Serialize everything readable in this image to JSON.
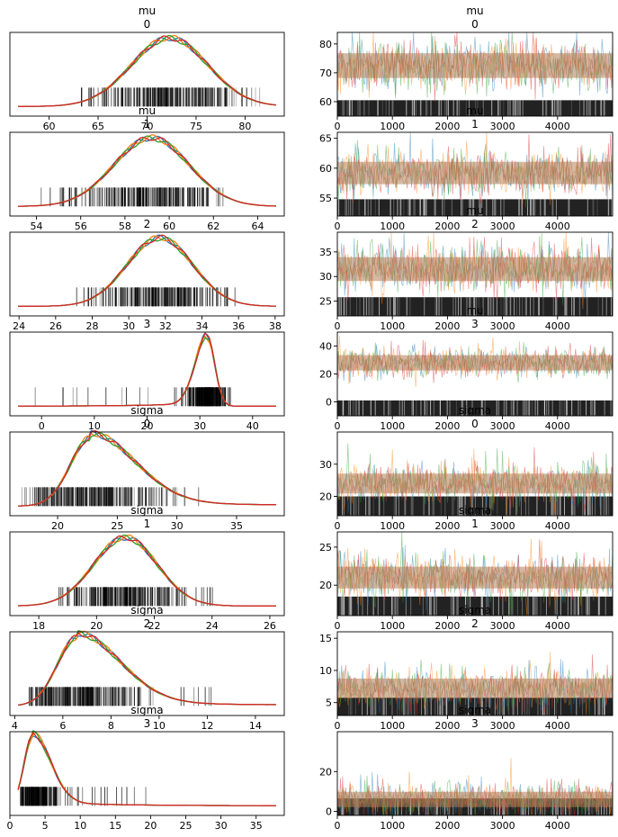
{
  "figure": {
    "left_column": "density",
    "right_column": "trace",
    "series_colors": [
      "#1f77b4",
      "#ff7f0e",
      "#2ca02c",
      "#d62728"
    ],
    "trace_blend_color": "#b5805a",
    "rug_color": "#000000"
  },
  "chart_data": [
    {
      "type": "area",
      "kind": "density",
      "title": "mu",
      "subtitle": "0",
      "xlim": [
        56,
        84
      ],
      "xticks": [
        60,
        65,
        70,
        75,
        80
      ],
      "mode": 72.3,
      "sd": 3.9,
      "rug_range": [
        59.5,
        81.5
      ],
      "shape": "normal"
    },
    {
      "type": "line",
      "kind": "trace",
      "title": "mu",
      "subtitle": "0",
      "xlim": [
        0,
        5000
      ],
      "ylim": [
        55,
        84
      ],
      "xticks": [
        0,
        1000,
        2000,
        3000,
        4000
      ],
      "yticks": [
        60,
        70,
        80
      ],
      "center": 72.5,
      "spread": 3.9,
      "rug_top": 60.5
    },
    {
      "type": "area",
      "kind": "density",
      "title": "mu",
      "subtitle": "1",
      "xlim": [
        52.8,
        65.2
      ],
      "xticks": [
        54,
        56,
        58,
        60,
        62,
        64
      ],
      "mode": 59.2,
      "sd": 1.7,
      "rug_range": [
        54,
        62.5
      ],
      "shape": "normal"
    },
    {
      "type": "line",
      "kind": "trace",
      "title": "mu",
      "subtitle": "1",
      "xlim": [
        0,
        5000
      ],
      "ylim": [
        52,
        66
      ],
      "xticks": [
        0,
        1000,
        2000,
        3000,
        4000
      ],
      "yticks": [
        55,
        60,
        65
      ],
      "center": 59.2,
      "spread": 1.7,
      "rug_top": 54.8
    },
    {
      "type": "area",
      "kind": "density",
      "title": "",
      "subtitle": "2",
      "xlim": [
        23.5,
        38.5
      ],
      "xticks": [
        24,
        26,
        28,
        30,
        32,
        34,
        36,
        38
      ],
      "mode": 31.7,
      "sd": 1.8,
      "rug_range": [
        26.8,
        36
      ],
      "shape": "normal"
    },
    {
      "type": "line",
      "kind": "trace",
      "title": "mu",
      "subtitle": "2",
      "xlim": [
        0,
        5000
      ],
      "ylim": [
        22,
        39
      ],
      "xticks": [
        0,
        1000,
        2000,
        3000,
        4000
      ],
      "yticks": [
        25,
        30,
        35
      ],
      "center": 31.5,
      "spread": 2.2,
      "rug_top": 25.8
    },
    {
      "type": "area",
      "kind": "density",
      "title": "",
      "subtitle": "3",
      "xlim": [
        -6,
        46
      ],
      "xticks": [
        0,
        10,
        20,
        30,
        40
      ],
      "mode": 31.4,
      "sd": 1.6,
      "rug_range": [
        -4,
        36
      ],
      "shape": "leftskew"
    },
    {
      "type": "line",
      "kind": "trace",
      "title": "mu",
      "subtitle": "3",
      "xlim": [
        0,
        5000
      ],
      "ylim": [
        -10,
        50
      ],
      "xticks": [
        0,
        1000,
        2000,
        3000,
        4000
      ],
      "yticks": [
        0,
        20,
        40
      ],
      "center": 28,
      "spread": 5,
      "rug_top": 1
    },
    {
      "type": "area",
      "kind": "density",
      "title": "sigma",
      "subtitle": "0",
      "xlim": [
        16,
        39
      ],
      "xticks": [
        20,
        25,
        30,
        35
      ],
      "mode": 22.8,
      "sd": 2.3,
      "rug_range": [
        17,
        32
      ],
      "shape": "rightskew"
    },
    {
      "type": "line",
      "kind": "trace",
      "title": "sigma",
      "subtitle": "0",
      "xlim": [
        0,
        5000
      ],
      "ylim": [
        14,
        40
      ],
      "xticks": [
        0,
        1000,
        2000,
        3000,
        4000
      ],
      "yticks": [
        20,
        30
      ],
      "center": 24,
      "spread": 2.8,
      "rug_top": 20
    },
    {
      "type": "area",
      "kind": "density",
      "title": "sigma",
      "subtitle": "1",
      "xlim": [
        17,
        26.5
      ],
      "xticks": [
        18,
        20,
        22,
        24,
        26
      ],
      "mode": 21,
      "sd": 1.1,
      "rug_range": [
        18.7,
        24.3
      ],
      "shape": "normal"
    },
    {
      "type": "line",
      "kind": "trace",
      "title": "sigma",
      "subtitle": "1",
      "xlim": [
        0,
        5000
      ],
      "ylim": [
        16,
        27
      ],
      "xticks": [
        0,
        1000,
        2000,
        3000,
        4000
      ],
      "yticks": [
        20,
        25
      ],
      "center": 21,
      "spread": 1.3,
      "rug_top": 18.5
    },
    {
      "type": "area",
      "kind": "density",
      "title": "sigma",
      "subtitle": "2",
      "xlim": [
        3.8,
        15.2
      ],
      "xticks": [
        4,
        6,
        8,
        10,
        12,
        14
      ],
      "mode": 6.6,
      "sd": 1.1,
      "rug_range": [
        4.5,
        12.4
      ],
      "shape": "rightskew"
    },
    {
      "type": "line",
      "kind": "trace",
      "title": "sigma",
      "subtitle": "2",
      "xlim": [
        0,
        5000
      ],
      "ylim": [
        3,
        16
      ],
      "xticks": [
        0,
        1000,
        2000,
        3000,
        4000
      ],
      "yticks": [
        5,
        10,
        15
      ],
      "center": 7.2,
      "spread": 1.4,
      "rug_top": 5.8
    },
    {
      "type": "area",
      "kind": "density",
      "title": "sigma",
      "subtitle": "3",
      "xlim": [
        0,
        39
      ],
      "xticks": [
        0,
        5,
        10,
        15,
        20,
        25,
        30,
        35
      ],
      "mode": 3.2,
      "sd": 1.6,
      "rug_range": [
        1.5,
        19.5
      ],
      "shape": "rightskew"
    },
    {
      "type": "line",
      "kind": "trace",
      "title": "sigma",
      "subtitle": "3",
      "xlim": [
        0,
        5000
      ],
      "ylim": [
        -2,
        40
      ],
      "xticks": [
        0,
        1000,
        2000,
        3000,
        4000
      ],
      "yticks": [
        0,
        20
      ],
      "center": 6,
      "spread": 3.5,
      "rug_top": 6.5
    }
  ]
}
